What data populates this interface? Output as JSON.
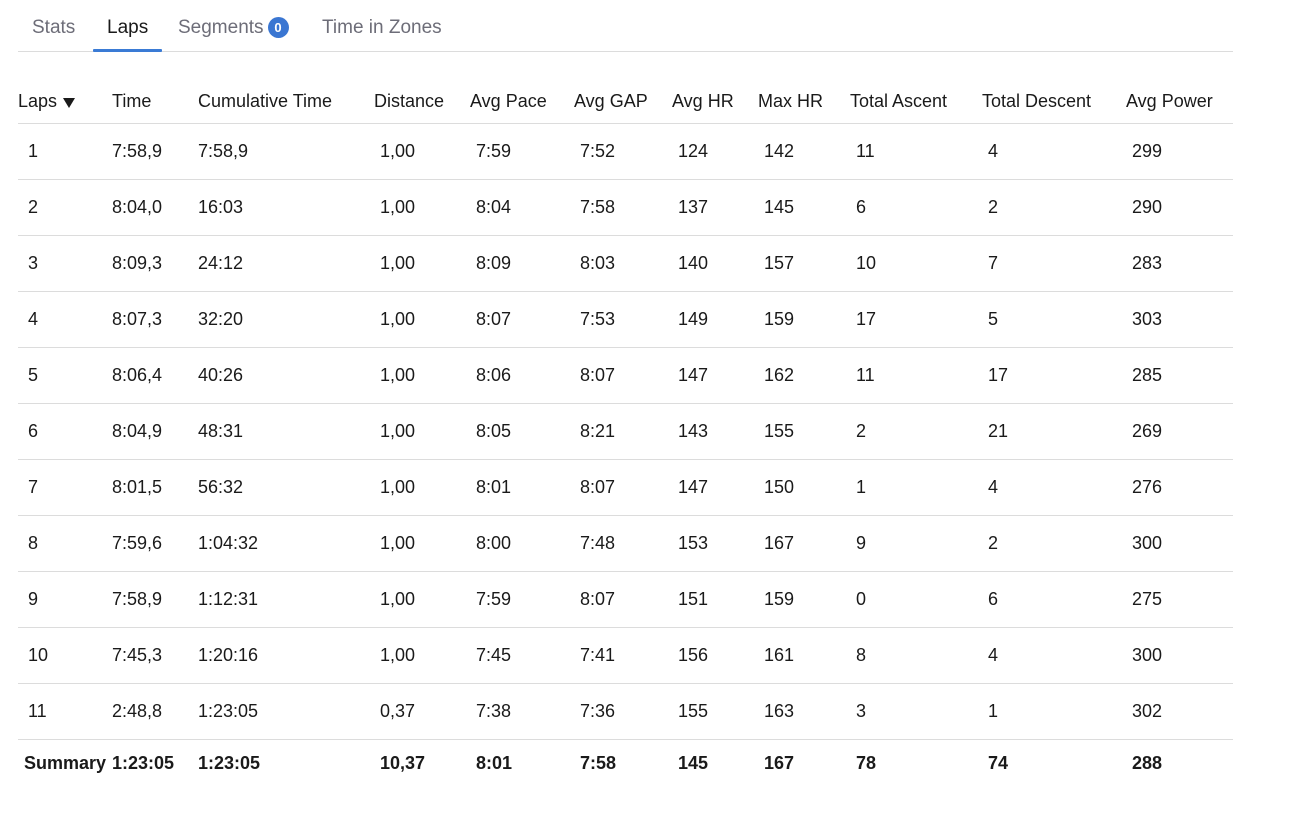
{
  "tabs": [
    {
      "label": "Stats",
      "active": false
    },
    {
      "label": "Laps",
      "active": true
    },
    {
      "label": "Segments",
      "badge": "0",
      "active": false
    },
    {
      "label": "Time in Zones",
      "active": false
    }
  ],
  "table": {
    "headers": [
      "Laps",
      "Time",
      "Cumulative Time",
      "Distance",
      "Avg Pace",
      "Avg GAP",
      "Avg HR",
      "Max HR",
      "Total Ascent",
      "Total Descent",
      "Avg Power"
    ],
    "rows": [
      [
        "1",
        "7:58,9",
        "7:58,9",
        "1,00",
        "7:59",
        "7:52",
        "124",
        "142",
        "11",
        "4",
        "299"
      ],
      [
        "2",
        "8:04,0",
        "16:03",
        "1,00",
        "8:04",
        "7:58",
        "137",
        "145",
        "6",
        "2",
        "290"
      ],
      [
        "3",
        "8:09,3",
        "24:12",
        "1,00",
        "8:09",
        "8:03",
        "140",
        "157",
        "10",
        "7",
        "283"
      ],
      [
        "4",
        "8:07,3",
        "32:20",
        "1,00",
        "8:07",
        "7:53",
        "149",
        "159",
        "17",
        "5",
        "303"
      ],
      [
        "5",
        "8:06,4",
        "40:26",
        "1,00",
        "8:06",
        "8:07",
        "147",
        "162",
        "11",
        "17",
        "285"
      ],
      [
        "6",
        "8:04,9",
        "48:31",
        "1,00",
        "8:05",
        "8:21",
        "143",
        "155",
        "2",
        "21",
        "269"
      ],
      [
        "7",
        "8:01,5",
        "56:32",
        "1,00",
        "8:01",
        "8:07",
        "147",
        "150",
        "1",
        "4",
        "276"
      ],
      [
        "8",
        "7:59,6",
        "1:04:32",
        "1,00",
        "8:00",
        "7:48",
        "153",
        "167",
        "9",
        "2",
        "300"
      ],
      [
        "9",
        "7:58,9",
        "1:12:31",
        "1,00",
        "7:59",
        "8:07",
        "151",
        "159",
        "0",
        "6",
        "275"
      ],
      [
        "10",
        "7:45,3",
        "1:20:16",
        "1,00",
        "7:45",
        "7:41",
        "156",
        "161",
        "8",
        "4",
        "300"
      ],
      [
        "11",
        "2:48,8",
        "1:23:05",
        "0,37",
        "7:38",
        "7:36",
        "155",
        "163",
        "3",
        "1",
        "302"
      ]
    ],
    "summary": [
      "Summary",
      "1:23:05",
      "1:23:05",
      "10,37",
      "8:01",
      "7:58",
      "145",
      "167",
      "78",
      "74",
      "288"
    ]
  },
  "colors": {
    "accent": "#3a7bd5",
    "badge": "#3a76d2",
    "border": "#dcdcdc"
  },
  "icons": {
    "sort": "caret-down-icon"
  }
}
